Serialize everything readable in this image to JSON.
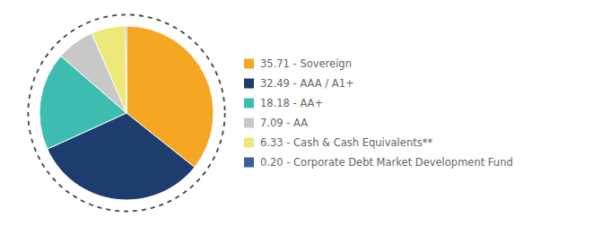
{
  "chart_data": {
    "type": "pie",
    "categories": [
      "35.71 - Sovereign",
      "32.49 - AAA / A1+",
      "18.18 - AA+",
      "7.09 - AA",
      "6.33 - Cash & Cash Equivalents**",
      "0.20 - Corporate Debt Market Development Fund"
    ],
    "values": [
      35.71,
      32.49,
      18.18,
      7.09,
      6.33,
      0.2
    ],
    "colors": [
      "#F5A623",
      "#1D3D6E",
      "#3DBDB0",
      "#C8C8C8",
      "#EDE87A",
      "#3A5FA0"
    ],
    "legend": "right"
  }
}
